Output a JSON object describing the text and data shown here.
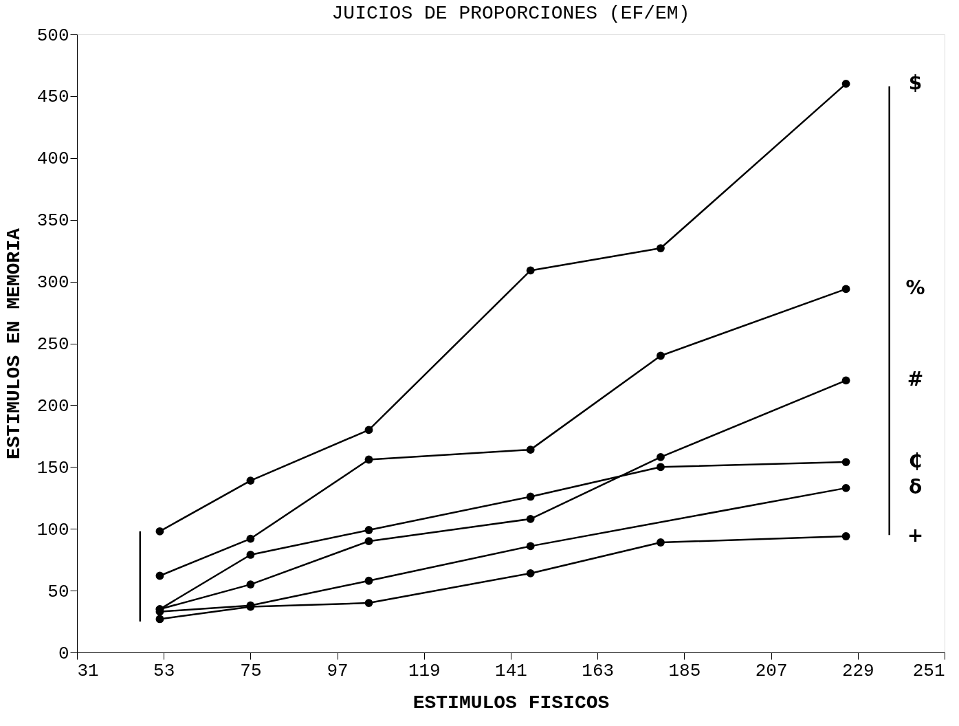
{
  "chart_data": {
    "type": "line",
    "title": "JUICIOS DE PROPORCIONES (EF/EM)",
    "xlabel": "ESTIMULOS FISICOS",
    "ylabel": "ESTIMULOS EN MEMORIA",
    "xlim": [
      31,
      251
    ],
    "xticks": [
      31,
      53,
      75,
      97,
      119,
      141,
      163,
      185,
      207,
      229,
      251
    ],
    "ylim": [
      0,
      500
    ],
    "yticks": [
      0,
      50,
      100,
      150,
      200,
      250,
      300,
      350,
      400,
      450,
      500
    ],
    "grid": false,
    "marker": "circle",
    "line_style": "solid",
    "x": [
      52,
      75,
      105,
      146,
      179,
      226
    ],
    "series": [
      {
        "name": "$",
        "color": "#000000",
        "values": [
          98,
          139,
          180,
          309,
          327,
          460
        ]
      },
      {
        "name": "%",
        "color": "#000000",
        "values": [
          62,
          92,
          156,
          164,
          240,
          294
        ]
      },
      {
        "name": "#",
        "color": "#000000",
        "values": [
          35,
          55,
          90,
          108,
          158,
          220
        ]
      },
      {
        "name": "₵",
        "color": "#000000",
        "values": [
          35,
          79,
          99,
          126,
          150,
          154
        ]
      },
      {
        "name": "δ",
        "color": "#000000",
        "x": [
          52,
          75,
          105,
          146,
          226
        ],
        "values": [
          33,
          38,
          58,
          86,
          133
        ]
      },
      {
        "name": "+",
        "color": "#000000",
        "values": [
          27,
          37,
          40,
          64,
          89,
          94
        ]
      },
      {
        "type": "line",
        "color": "#000000",
        "marker": "none",
        "x": [
          47,
          47
        ],
        "values": [
          25,
          98
        ]
      },
      {
        "type": "line",
        "color": "#000000",
        "marker": "none",
        "x": [
          237,
          237
        ],
        "values": [
          95,
          458
        ]
      }
    ]
  }
}
